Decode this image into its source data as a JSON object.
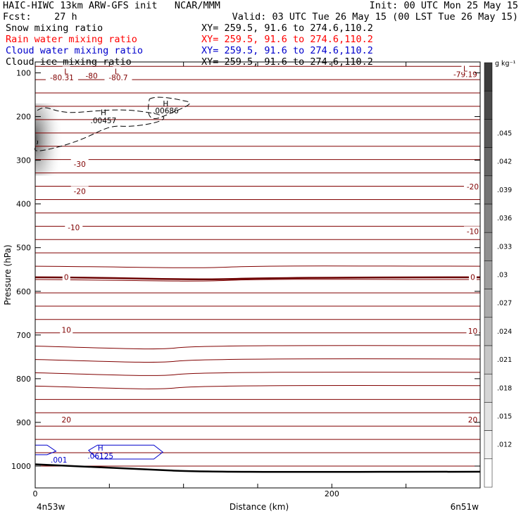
{
  "header": {
    "line1_left": "HAIC-HIWC 13km ARW-GFS init   NCAR/MMM",
    "line1_right": "Init: 00 UTC Mon 25 May 15",
    "line2_left": "Fcst:    27 h",
    "line2_right": "Valid: 03 UTC Tue 26 May 15 (00 LST Tue 26 May 15)",
    "fields": [
      {
        "name": "Snow mixing ratio",
        "xy": "XY= 259.5, 91.6 to 274.6,110.2",
        "color": "#000000"
      },
      {
        "name": "Rain water mixing ratio",
        "xy": "XY= 259.5, 91.6 to 274.6,110.2",
        "color": "#ff0000"
      },
      {
        "name": "Cloud water mixing ratio",
        "xy": "XY= 259.5, 91.6 to 274.6,110.2",
        "color": "#0000cc"
      },
      {
        "name": "Cloud ice mixing ratio",
        "xy": "XY= 259.5, 91.6 to 274.6,110.2",
        "color": "#000000"
      }
    ]
  },
  "chart_data": {
    "type": "cross-section",
    "xlabel": "Distance (km)",
    "ylabel": "Pressure (hPa)",
    "xlim": [
      0,
      300
    ],
    "ylim": [
      1050,
      75
    ],
    "x_ticks": [
      0,
      200
    ],
    "y_ticks": [
      100,
      200,
      300,
      400,
      500,
      600,
      700,
      800,
      900,
      1000
    ],
    "x_endpoint_labels": {
      "left": "4n53w",
      "right": "6n51w"
    },
    "colorbar": {
      "unit": "g kg⁻¹",
      "labels": [
        ".045",
        ".042",
        ".039",
        ".036",
        ".033",
        ".03",
        ".027",
        ".024",
        ".021",
        ".018",
        ".015",
        ".012"
      ]
    },
    "temperature_labels": [
      {
        "text": "-80.31",
        "x": 18,
        "p": 112
      },
      {
        "text": "-80",
        "x": 38,
        "p": 108
      },
      {
        "text": "-80.7",
        "x": 56,
        "p": 112
      },
      {
        "text": "-79.19",
        "x": 290,
        "p": 105
      },
      {
        "text": "L",
        "x": 21,
        "p": 98
      },
      {
        "text": "L",
        "x": 55,
        "p": 98
      },
      {
        "text": "L",
        "x": 290,
        "p": 92
      },
      {
        "text": "-30",
        "x": 30,
        "p": 310
      },
      {
        "text": "-20",
        "x": 30,
        "p": 372
      },
      {
        "text": "-20",
        "x": 295,
        "p": 362
      },
      {
        "text": "-10",
        "x": 26,
        "p": 455
      },
      {
        "text": "-10",
        "x": 295,
        "p": 464
      },
      {
        "text": "0",
        "x": 21,
        "p": 569
      },
      {
        "text": "0",
        "x": 295,
        "p": 569
      },
      {
        "text": "10",
        "x": 21,
        "p": 690
      },
      {
        "text": "10",
        "x": 295,
        "p": 692
      },
      {
        "text": "20",
        "x": 21,
        "p": 895
      },
      {
        "text": "20",
        "x": 295,
        "p": 895
      }
    ],
    "snow_labels": [
      {
        "text": "H",
        "x": 46,
        "p": 192
      },
      {
        "text": ".00457",
        "x": 46,
        "p": 210
      },
      {
        "text": "H",
        "x": 88,
        "p": 172
      },
      {
        "text": ".00686",
        "x": 88,
        "p": 188
      }
    ],
    "cloud_water_labels": [
      {
        "text": ".001",
        "x": 16,
        "p": 987
      },
      {
        "text": "H",
        "x": 44,
        "p": 960
      },
      {
        "text": ".06125",
        "x": 44,
        "p": 978
      }
    ]
  }
}
